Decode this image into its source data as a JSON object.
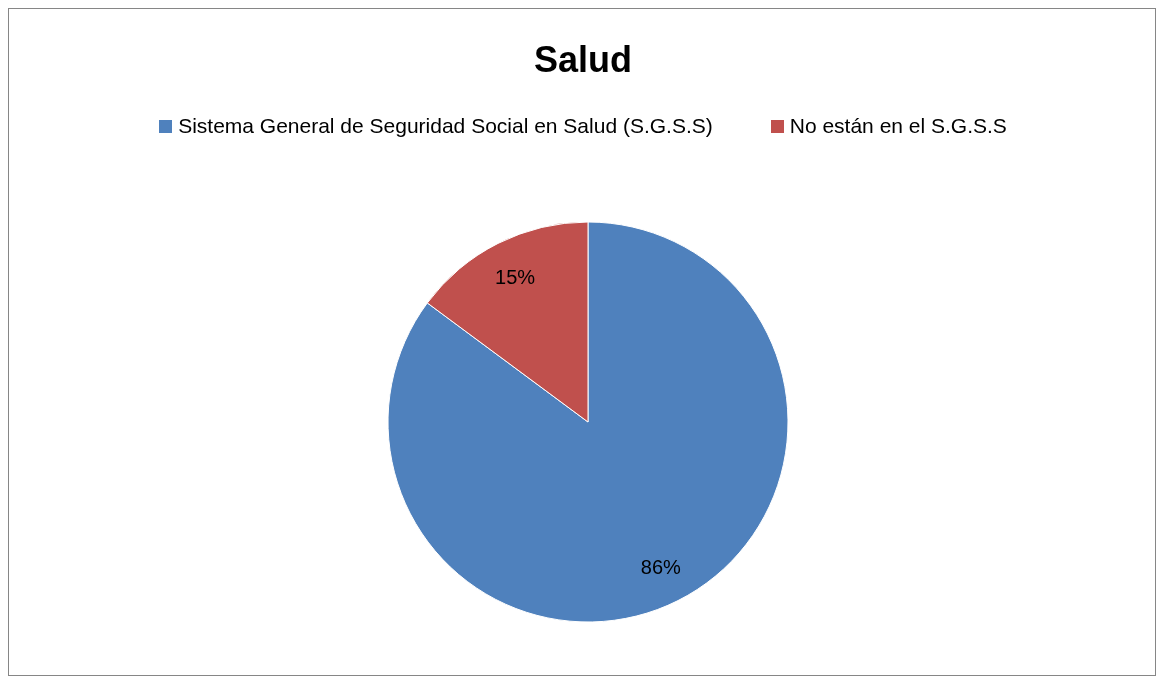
{
  "chart_data": {
    "type": "pie",
    "title": "Salud",
    "categories": [
      "Sistema General de Seguridad Social en Salud (S.G.S.S)",
      "No están en el S.G.S.S"
    ],
    "values": [
      86,
      15
    ],
    "colors": [
      "#4f81bd",
      "#c0504d"
    ],
    "value_labels": [
      "86%",
      "15%"
    ],
    "legend": "top"
  }
}
